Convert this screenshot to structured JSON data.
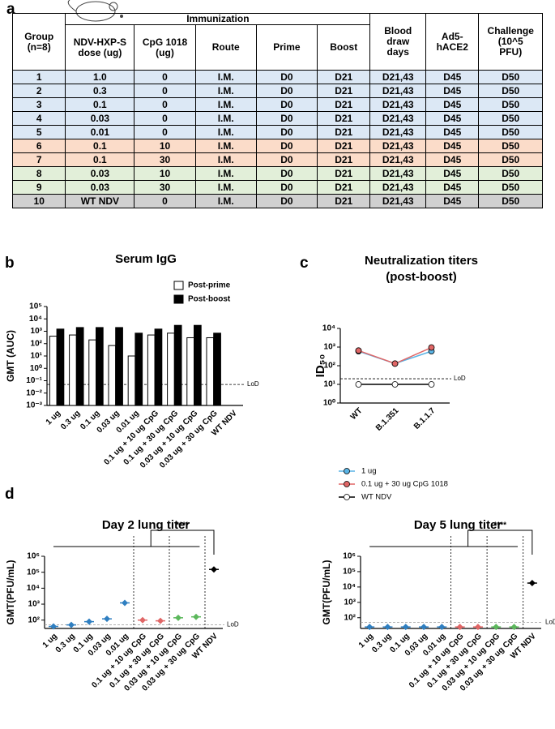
{
  "panel_labels": [
    "a",
    "b",
    "c",
    "d"
  ],
  "table": {
    "header": {
      "group": "Group\n(n=8)",
      "immunization": "Immunization",
      "columns": [
        "NDV-HXP-S\ndose (ug)",
        "CpG 1018\n(ug)",
        "Route",
        "Prime",
        "Boost"
      ],
      "blood": "Blood\ndraw\ndays",
      "ad5": "Ad5-\nhACE2",
      "challenge": "Challenge\n(10^5\nPFU)"
    },
    "row_colors": [
      "#dce8f5",
      "#dce8f5",
      "#dce8f5",
      "#dce8f5",
      "#dce8f5",
      "#fbdcc9",
      "#fbdcc9",
      "#e2efd9",
      "#e2efd9",
      "#d0d0d0"
    ],
    "rows": [
      [
        "1",
        "1.0",
        "0",
        "I.M.",
        "D0",
        "D21",
        "D21,43",
        "D45",
        "D50"
      ],
      [
        "2",
        "0.3",
        "0",
        "I.M.",
        "D0",
        "D21",
        "D21,43",
        "D45",
        "D50"
      ],
      [
        "3",
        "0.1",
        "0",
        "I.M.",
        "D0",
        "D21",
        "D21,43",
        "D45",
        "D50"
      ],
      [
        "4",
        "0.03",
        "0",
        "I.M.",
        "D0",
        "D21",
        "D21,43",
        "D45",
        "D50"
      ],
      [
        "5",
        "0.01",
        "0",
        "I.M.",
        "D0",
        "D21",
        "D21,43",
        "D45",
        "D50"
      ],
      [
        "6",
        "0.1",
        "10",
        "I.M.",
        "D0",
        "D21",
        "D21,43",
        "D45",
        "D50"
      ],
      [
        "7",
        "0.1",
        "30",
        "I.M.",
        "D0",
        "D21",
        "D21,43",
        "D45",
        "D50"
      ],
      [
        "8",
        "0.03",
        "10",
        "I.M.",
        "D0",
        "D21",
        "D21,43",
        "D45",
        "D50"
      ],
      [
        "9",
        "0.03",
        "30",
        "I.M.",
        "D0",
        "D21",
        "D21,43",
        "D45",
        "D50"
      ],
      [
        "10",
        "WT NDV",
        "0",
        "I.M.",
        "D0",
        "D21",
        "D21,43",
        "D45",
        "D50"
      ]
    ]
  },
  "chart_data": [
    {
      "type": "bar",
      "title": "Serum IgG",
      "y_label": "GMT (AUC)",
      "log_y": true,
      "legend": "top-right",
      "categories": [
        "1 ug",
        "0.3 ug",
        "0.1 ug",
        "0.03 ug",
        "0.01 ug",
        "0.1 ug + 10 ug CpG",
        "0.1 ug + 30 ug CpG",
        "0.03 ug + 10 ug CpG",
        "0.03 ug + 30 ug CpG",
        "WT NDV"
      ],
      "series": [
        {
          "name": "Post-prime",
          "color": "#ffffff",
          "values": [
            400,
            500,
            200,
            70,
            10,
            500,
            700,
            300,
            300,
            null
          ]
        },
        {
          "name": "Post-boost",
          "color": "#000000",
          "values": [
            1500,
            2000,
            2000,
            2000,
            700,
            1500,
            3000,
            3000,
            700,
            null
          ]
        }
      ],
      "ylim": [
        0.001,
        100000
      ],
      "yticks": [
        {
          "value": 0.001,
          "label": "10⁻³"
        },
        {
          "value": 0.01,
          "label": "10⁻²"
        },
        {
          "value": 0.1,
          "label": "10⁻¹"
        },
        {
          "value": 1,
          "label": "10⁰"
        },
        {
          "value": 10,
          "label": "10¹"
        },
        {
          "value": 100,
          "label": "10²"
        },
        {
          "value": 1000,
          "label": "10³"
        },
        {
          "value": 10000,
          "label": "10⁴"
        },
        {
          "value": 100000,
          "label": "10⁵"
        }
      ],
      "lod": 0.05,
      "lod_label": "LoD"
    },
    {
      "type": "line",
      "title": "Neutralization titers",
      "subtitle": "(post-boost)",
      "y_label": "ID₅₀",
      "log_y": true,
      "legend": "bottom",
      "categories": [
        "WT",
        "B.1.351",
        "B.1.1.7"
      ],
      "series": [
        {
          "name": "1 ug",
          "color": "#5ab4e5",
          "values": [
            600,
            130,
            600
          ]
        },
        {
          "name": "0.1 ug + 30 ug CpG 1018",
          "color": "#e06666",
          "values": [
            650,
            130,
            950
          ]
        },
        {
          "name": "WT NDV",
          "color": "#000000",
          "values": [
            10,
            10,
            10
          ]
        }
      ],
      "ylim": [
        1,
        10000
      ],
      "yticks": [
        {
          "value": 1,
          "label": "10⁰"
        },
        {
          "value": 10,
          "label": "10¹"
        },
        {
          "value": 100,
          "label": "10²"
        },
        {
          "value": 1000,
          "label": "10³"
        },
        {
          "value": 10000,
          "label": "10⁴"
        }
      ],
      "lod": 20,
      "lod_label": "LoD"
    },
    {
      "type": "dot",
      "title": "Day 2 lung titer",
      "y_label": "GMT(PFU/mL)",
      "log_y": true,
      "significance": "****",
      "categories": [
        "1 ug",
        "0.3 ug",
        "0.1 ug",
        "0.03 ug",
        "0.01 ug",
        "0.1 ug + 10 ug CpG",
        "0.1 ug + 30 ug CpG",
        "0.03 ug + 10 ug CpG",
        "0.03 ug + 30 ug CpG",
        "WT NDV"
      ],
      "values": [
        40,
        50,
        80,
        120,
        1200,
        100,
        90,
        140,
        160,
        150000
      ],
      "colors": [
        "#2f7fc1",
        "#2f7fc1",
        "#2f7fc1",
        "#2f7fc1",
        "#2f7fc1",
        "#e06666",
        "#e06666",
        "#5cb85c",
        "#5cb85c",
        "#000000"
      ],
      "ylim": [
        30,
        1000000
      ],
      "yticks": [
        {
          "value": 100,
          "label": "10²"
        },
        {
          "value": 1000,
          "label": "10³"
        },
        {
          "value": 10000,
          "label": "10⁴"
        },
        {
          "value": 100000,
          "label": "10⁵"
        },
        {
          "value": 1000000,
          "label": "10⁶"
        }
      ],
      "lod": 50,
      "lod_label": "LoD"
    },
    {
      "type": "dot",
      "title": "Day 5 lung titer",
      "y_label": "GMT(PFU/mL)",
      "log_y": true,
      "significance": "****",
      "categories": [
        "1 ug",
        "0.3 ug",
        "0.1 ug",
        "0.03 ug",
        "0.01 ug",
        "0.1 ug + 10 ug CpG",
        "0.1 ug + 30 ug CpG",
        "0.03 ug + 10 ug CpG",
        "0.03 ug + 30 ug CpG",
        "WT NDV"
      ],
      "values": [
        25,
        25,
        25,
        25,
        25,
        25,
        25,
        25,
        25,
        18000
      ],
      "colors": [
        "#2f7fc1",
        "#2f7fc1",
        "#2f7fc1",
        "#2f7fc1",
        "#2f7fc1",
        "#e06666",
        "#e06666",
        "#5cb85c",
        "#5cb85c",
        "#000000"
      ],
      "ylim": [
        20,
        1000000
      ],
      "yticks": [
        {
          "value": 100,
          "label": "10²"
        },
        {
          "value": 1000,
          "label": "10³"
        },
        {
          "value": 10000,
          "label": "10⁴"
        },
        {
          "value": 100000,
          "label": "10⁵"
        },
        {
          "value": 1000000,
          "label": "10⁶"
        }
      ],
      "lod": 50,
      "lod_label": "LoD"
    }
  ]
}
